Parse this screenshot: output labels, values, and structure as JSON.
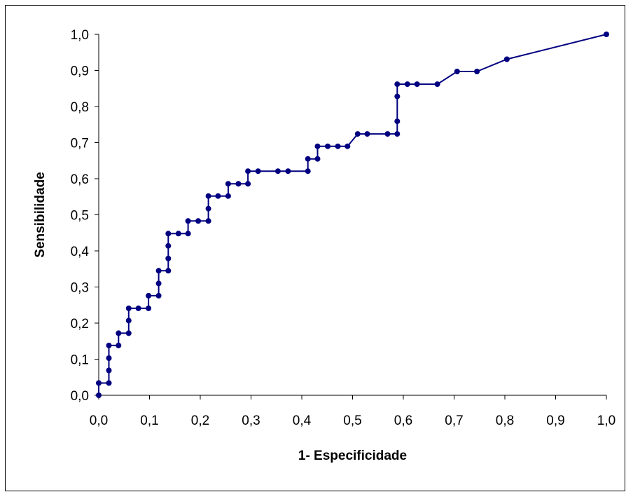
{
  "chart_data": {
    "type": "line",
    "title": "",
    "xlabel": "1- Especificidade",
    "ylabel": "Sensibilidade",
    "xlim": [
      0,
      1
    ],
    "ylim": [
      0,
      1
    ],
    "x_ticks": [
      "0,0",
      "0,1",
      "0,2",
      "0,3",
      "0,4",
      "0,5",
      "0,6",
      "0,7",
      "0,8",
      "0,9",
      "1,0"
    ],
    "y_ticks": [
      "0,0",
      "0,1",
      "0,2",
      "0,3",
      "0,4",
      "0,5",
      "0,6",
      "0,7",
      "0,8",
      "0,9",
      "1,0"
    ],
    "grid": false,
    "legend": "none",
    "colors": {
      "line": "#000080",
      "marker": "#000080",
      "axis": "#000000"
    },
    "series": [
      {
        "points": [
          [
            0.0,
            0.0
          ],
          [
            0.0,
            0.034
          ],
          [
            0.02,
            0.034
          ],
          [
            0.02,
            0.069
          ],
          [
            0.02,
            0.103
          ],
          [
            0.02,
            0.138
          ],
          [
            0.039,
            0.138
          ],
          [
            0.039,
            0.172
          ],
          [
            0.059,
            0.172
          ],
          [
            0.059,
            0.207
          ],
          [
            0.059,
            0.241
          ],
          [
            0.078,
            0.241
          ],
          [
            0.098,
            0.241
          ],
          [
            0.098,
            0.276
          ],
          [
            0.118,
            0.276
          ],
          [
            0.118,
            0.31
          ],
          [
            0.118,
            0.345
          ],
          [
            0.137,
            0.345
          ],
          [
            0.137,
            0.379
          ],
          [
            0.137,
            0.414
          ],
          [
            0.137,
            0.448
          ],
          [
            0.157,
            0.448
          ],
          [
            0.176,
            0.448
          ],
          [
            0.176,
            0.483
          ],
          [
            0.196,
            0.483
          ],
          [
            0.216,
            0.483
          ],
          [
            0.216,
            0.517
          ],
          [
            0.216,
            0.552
          ],
          [
            0.235,
            0.552
          ],
          [
            0.255,
            0.552
          ],
          [
            0.255,
            0.586
          ],
          [
            0.275,
            0.586
          ],
          [
            0.294,
            0.586
          ],
          [
            0.294,
            0.621
          ],
          [
            0.314,
            0.621
          ],
          [
            0.353,
            0.621
          ],
          [
            0.373,
            0.621
          ],
          [
            0.412,
            0.621
          ],
          [
            0.412,
            0.655
          ],
          [
            0.431,
            0.655
          ],
          [
            0.431,
            0.69
          ],
          [
            0.451,
            0.69
          ],
          [
            0.471,
            0.69
          ],
          [
            0.49,
            0.69
          ],
          [
            0.51,
            0.724
          ],
          [
            0.529,
            0.724
          ],
          [
            0.569,
            0.724
          ],
          [
            0.588,
            0.724
          ],
          [
            0.588,
            0.759
          ],
          [
            0.588,
            0.828
          ],
          [
            0.588,
            0.862
          ],
          [
            0.608,
            0.862
          ],
          [
            0.627,
            0.862
          ],
          [
            0.667,
            0.862
          ],
          [
            0.706,
            0.897
          ],
          [
            0.745,
            0.897
          ],
          [
            0.804,
            0.931
          ],
          [
            1.0,
            1.0
          ]
        ]
      }
    ]
  }
}
